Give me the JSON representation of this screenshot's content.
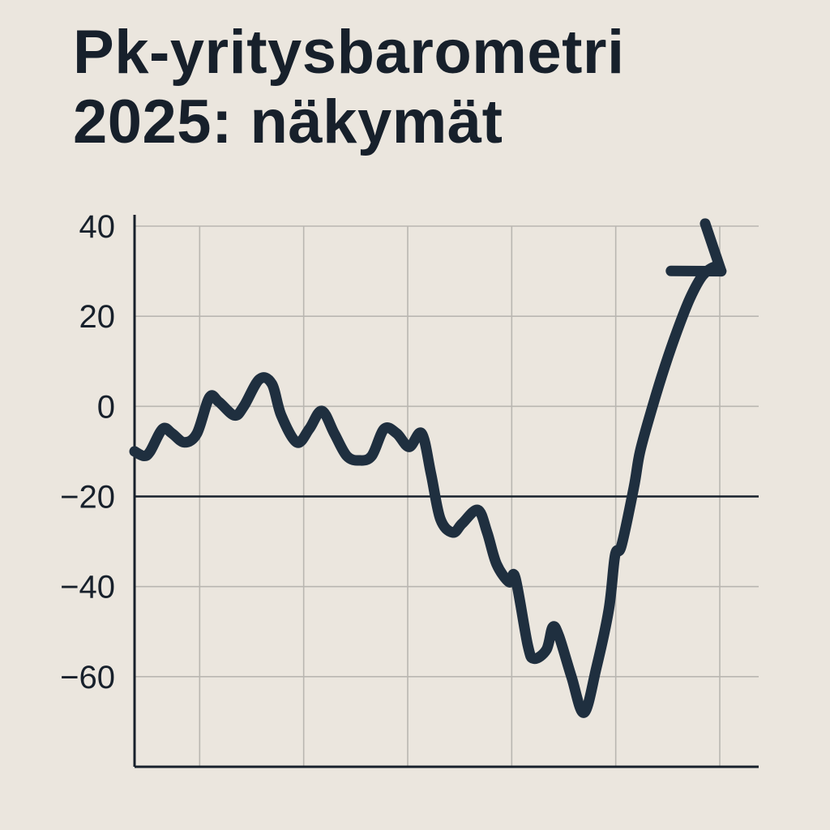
{
  "title_lines": [
    "Pk-yritysbarometri",
    "2025: näkymät"
  ],
  "colors": {
    "background": "#ebe6de",
    "line": "#1f2f3f",
    "grid": "#b9b6b1",
    "axis": "#17202b"
  },
  "chart_data": {
    "type": "line",
    "title": "Pk-yritysbarometri 2025: näkymät",
    "xlabel": "",
    "ylabel": "",
    "ylim": [
      -80,
      40
    ],
    "xlim": [
      0,
      100
    ],
    "grid": true,
    "y_ticks": [
      40,
      20,
      0,
      -20,
      -40,
      -60
    ],
    "y_tick_labels": [
      "40",
      "20",
      "0",
      "−20",
      "−40",
      "−60"
    ],
    "reference_line": -20,
    "end_marker": "arrow",
    "series": [
      {
        "name": "",
        "x": [
          0,
          1.5,
          2.5,
          4.5,
          6,
          8,
          10,
          12,
          13.5,
          16,
          17.5,
          20,
          22,
          23.5,
          26,
          28,
          30,
          32,
          34,
          36,
          38,
          40,
          42,
          44,
          46,
          47.5,
          49,
          51,
          52.5,
          55,
          56.5,
          58,
          60,
          61,
          63,
          64,
          66,
          67,
          68,
          70,
          72,
          74,
          76,
          77,
          78,
          80,
          81,
          83,
          85,
          87,
          89,
          91,
          93,
          94
        ],
        "y": [
          -10,
          -11,
          -10,
          -5,
          -6,
          -8,
          -6,
          2,
          1,
          -2,
          0,
          6,
          5,
          -2,
          -8,
          -5,
          -1,
          -6,
          -11,
          -12,
          -11,
          -5,
          -6,
          -9,
          -6,
          -15,
          -25,
          -28,
          -26,
          -23,
          -28,
          -35,
          -39,
          -38,
          -53,
          -56,
          -54,
          -49,
          -51,
          -60,
          -68,
          -58,
          -45,
          -33,
          -31,
          -18,
          -10,
          0,
          9,
          17,
          24,
          29,
          31,
          30
        ]
      }
    ]
  }
}
